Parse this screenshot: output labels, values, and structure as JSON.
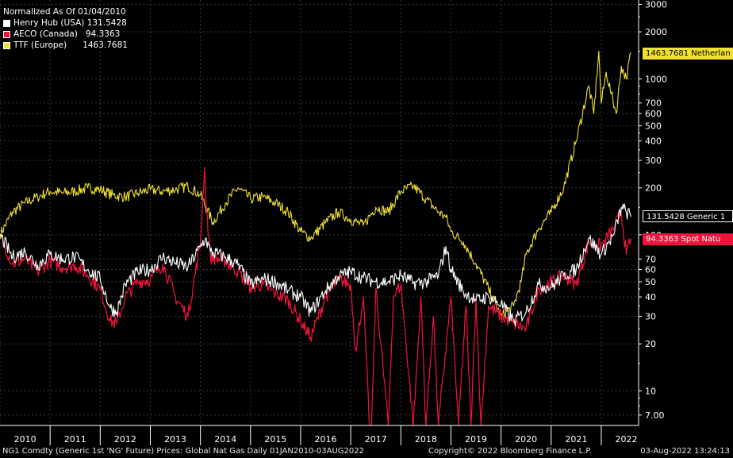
{
  "chart_data": {
    "type": "line",
    "title": "Normalized As Of 01/04/2010",
    "yscale": "log",
    "ylim": [
      6,
      3200
    ],
    "xlim": [
      "2010-01-01",
      "2022-09-30"
    ],
    "y_ticks": [
      7,
      10,
      20,
      30,
      40,
      50,
      60,
      70,
      100,
      200,
      300,
      400,
      500,
      600,
      700,
      1000,
      2000,
      3000
    ],
    "y_tick_labels": [
      "7.00",
      "10",
      "20",
      "30",
      "40",
      "50",
      "60",
      "70",
      "100",
      "200",
      "300",
      "400",
      "500",
      "600",
      "700",
      "1000",
      "2000",
      "3000"
    ],
    "x_tick_labels": [
      "2010",
      "2011",
      "2012",
      "2013",
      "2014",
      "2015",
      "2016",
      "2017",
      "2018",
      "2019",
      "2020",
      "2021",
      "2022"
    ],
    "grid": true,
    "legend_position": "top-left",
    "series": [
      {
        "name": "Henry Hub (USA)",
        "legend_value": "131.5428",
        "tag": "131.5428  Generic 1",
        "color": "#ffffff",
        "x": [
          2010.0,
          2010.25,
          2010.5,
          2010.75,
          2011.0,
          2011.25,
          2011.5,
          2011.75,
          2012.0,
          2012.2,
          2012.33,
          2012.5,
          2012.75,
          2013.0,
          2013.25,
          2013.5,
          2013.75,
          2014.0,
          2014.1,
          2014.2,
          2014.5,
          2014.75,
          2015.0,
          2015.25,
          2015.5,
          2015.75,
          2016.0,
          2016.2,
          2016.5,
          2016.75,
          2017.0,
          2017.25,
          2017.5,
          2017.75,
          2018.0,
          2018.25,
          2018.5,
          2018.75,
          2018.9,
          2019.0,
          2019.25,
          2019.5,
          2019.75,
          2020.0,
          2020.25,
          2020.5,
          2020.75,
          2021.0,
          2021.25,
          2021.5,
          2021.75,
          2022.0,
          2022.25,
          2022.4,
          2022.5,
          2022.59
        ],
        "y": [
          100,
          72,
          78,
          64,
          75,
          70,
          72,
          60,
          52,
          34,
          32,
          48,
          58,
          60,
          72,
          66,
          62,
          84,
          95,
          78,
          72,
          64,
          48,
          52,
          50,
          44,
          40,
          32,
          44,
          54,
          58,
          53,
          50,
          50,
          55,
          49,
          50,
          55,
          84,
          60,
          43,
          38,
          40,
          36,
          28,
          32,
          48,
          46,
          55,
          60,
          95,
          75,
          100,
          150,
          140,
          131.5428
        ]
      },
      {
        "name": "AECO (Canada)",
        "legend_value": "94.3363",
        "tag": "94.3363   Spot Natu",
        "color": "#f0143c",
        "x": [
          2010.0,
          2010.25,
          2010.5,
          2010.75,
          2011.0,
          2011.25,
          2011.5,
          2011.75,
          2012.0,
          2012.2,
          2012.33,
          2012.5,
          2012.75,
          2013.0,
          2013.25,
          2013.5,
          2013.75,
          2014.0,
          2014.08,
          2014.12,
          2014.2,
          2014.5,
          2014.75,
          2015.0,
          2015.25,
          2015.5,
          2015.75,
          2016.0,
          2016.2,
          2016.5,
          2016.75,
          2017.0,
          2017.1,
          2017.25,
          2017.4,
          2017.5,
          2017.75,
          2017.85,
          2018.0,
          2018.25,
          2018.4,
          2018.5,
          2018.65,
          2018.75,
          2019.0,
          2019.15,
          2019.3,
          2019.4,
          2019.5,
          2019.6,
          2019.75,
          2020.0,
          2020.25,
          2020.5,
          2020.75,
          2021.0,
          2021.25,
          2021.5,
          2021.75,
          2022.0,
          2022.25,
          2022.4,
          2022.5,
          2022.59
        ],
        "y": [
          100,
          65,
          70,
          58,
          68,
          62,
          64,
          55,
          45,
          28,
          27,
          40,
          50,
          52,
          65,
          40,
          30,
          88,
          270,
          150,
          72,
          68,
          58,
          46,
          48,
          42,
          38,
          28,
          22,
          40,
          52,
          48,
          18,
          40,
          4,
          45,
          6,
          40,
          48,
          6,
          40,
          6,
          30,
          6,
          40,
          6,
          35,
          6,
          40,
          6,
          35,
          30,
          27,
          25,
          45,
          50,
          55,
          48,
          90,
          85,
          110,
          140,
          75,
          94.3363
        ]
      },
      {
        "name": "TTF (Europe)",
        "legend_value": "1463.7681",
        "tag": "1463.7681 Netherlan",
        "color": "#f0e130",
        "x": [
          2010.0,
          2010.25,
          2010.5,
          2010.75,
          2011.0,
          2011.25,
          2011.5,
          2011.75,
          2012.0,
          2012.25,
          2012.5,
          2012.75,
          2013.0,
          2013.25,
          2013.5,
          2013.75,
          2014.0,
          2014.25,
          2014.5,
          2014.75,
          2015.0,
          2015.25,
          2015.5,
          2015.75,
          2016.0,
          2016.2,
          2016.5,
          2016.75,
          2017.0,
          2017.25,
          2017.5,
          2017.75,
          2018.0,
          2018.25,
          2018.5,
          2018.75,
          2018.9,
          2019.0,
          2019.25,
          2019.5,
          2019.75,
          2020.0,
          2020.25,
          2020.4,
          2020.5,
          2020.75,
          2021.0,
          2021.25,
          2021.5,
          2021.75,
          2021.85,
          2021.95,
          2022.0,
          2022.1,
          2022.2,
          2022.3,
          2022.4,
          2022.5,
          2022.59
        ],
        "y": [
          100,
          140,
          160,
          175,
          190,
          185,
          190,
          200,
          195,
          180,
          175,
          185,
          195,
          190,
          195,
          205,
          180,
          120,
          160,
          200,
          170,
          175,
          160,
          140,
          105,
          95,
          120,
          140,
          125,
          115,
          150,
          140,
          190,
          205,
          170,
          140,
          130,
          105,
          90,
          65,
          45,
          30,
          35,
          50,
          75,
          110,
          140,
          200,
          400,
          900,
          600,
          1500,
          700,
          1100,
          800,
          600,
          1200,
          1000,
          1463.7681
        ]
      }
    ]
  },
  "footer": {
    "left": "NG1 Comdty (Generic 1st 'NG' Future) Prices: Global Nat Gas  Daily 01JAN2010-03AUG2022",
    "center": "Copyright© 2022 Bloomberg Finance L.P.",
    "right": "03-Aug-2022 13:24:13"
  }
}
